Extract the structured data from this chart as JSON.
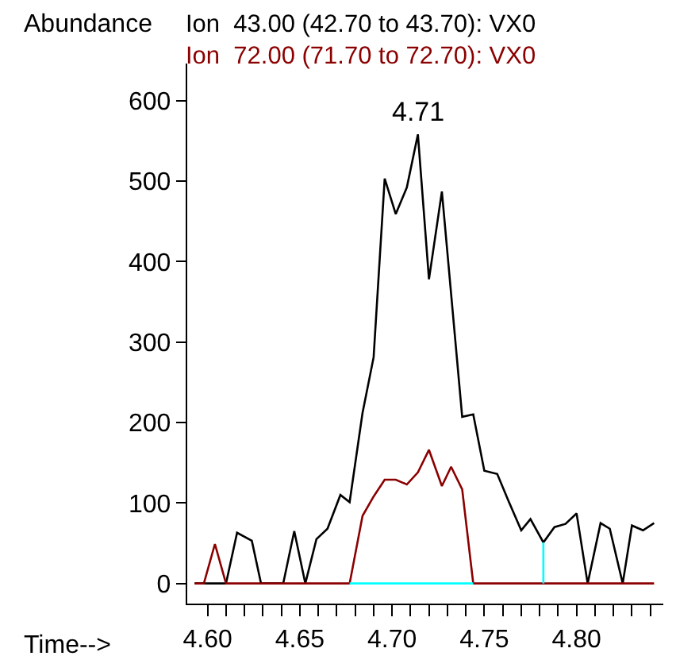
{
  "chart_data": {
    "type": "line",
    "xlabel": "Time-->",
    "ylabel": "Abundance",
    "xlim": [
      4.589,
      4.847
    ],
    "ylim": [
      -25,
      646
    ],
    "xticks": [
      {
        "value": 4.6,
        "label": "4.60"
      },
      {
        "value": 4.61,
        "label": null
      },
      {
        "value": 4.62,
        "label": null
      },
      {
        "value": 4.63,
        "label": null
      },
      {
        "value": 4.64,
        "label": null
      },
      {
        "value": 4.65,
        "label": "4.65"
      },
      {
        "value": 4.66,
        "label": null
      },
      {
        "value": 4.67,
        "label": null
      },
      {
        "value": 4.68,
        "label": null
      },
      {
        "value": 4.69,
        "label": null
      },
      {
        "value": 4.7,
        "label": "4.70"
      },
      {
        "value": 4.71,
        "label": null
      },
      {
        "value": 4.72,
        "label": null
      },
      {
        "value": 4.73,
        "label": null
      },
      {
        "value": 4.74,
        "label": null
      },
      {
        "value": 4.75,
        "label": "4.75"
      },
      {
        "value": 4.76,
        "label": null
      },
      {
        "value": 4.77,
        "label": null
      },
      {
        "value": 4.78,
        "label": null
      },
      {
        "value": 4.79,
        "label": null
      },
      {
        "value": 4.8,
        "label": "4.80"
      },
      {
        "value": 4.81,
        "label": null
      },
      {
        "value": 4.82,
        "label": null
      },
      {
        "value": 4.83,
        "label": null
      },
      {
        "value": 4.84,
        "label": null
      }
    ],
    "yticks": [
      0,
      100,
      200,
      300,
      400,
      500,
      600
    ],
    "grid": false,
    "legend": "top",
    "marker": "none",
    "annotations": [
      {
        "text": "4.71",
        "x": 4.714,
        "y": 558
      }
    ],
    "series": [
      {
        "name": "Ion  43.00 (42.70 to 43.70): VX0",
        "color": "#000000",
        "x": [
          4.593,
          4.61,
          4.616,
          4.624,
          4.629,
          4.641,
          4.647,
          4.653,
          4.659,
          4.665,
          4.672,
          4.677,
          4.684,
          4.69,
          4.696,
          4.702,
          4.708,
          4.714,
          4.72,
          4.727,
          4.738,
          4.744,
          4.75,
          4.757,
          4.763,
          4.77,
          4.775,
          4.782,
          4.788,
          4.794,
          4.8,
          4.806,
          4.813,
          4.818,
          4.825,
          4.83,
          4.836,
          4.842
        ],
        "values": [
          0,
          0,
          63,
          53,
          0,
          0,
          65,
          0,
          55,
          68,
          110,
          101,
          212,
          281,
          503,
          459,
          492,
          558,
          378,
          487,
          207,
          210,
          140,
          136,
          103,
          66,
          80,
          51,
          70,
          74,
          87,
          0,
          75,
          68,
          0,
          72,
          66,
          75
        ]
      },
      {
        "name": "Ion  72.00 (71.70 to 72.70): VX0",
        "color": "#8b0000",
        "x": [
          4.593,
          4.598,
          4.604,
          4.61,
          4.677,
          4.684,
          4.69,
          4.696,
          4.702,
          4.708,
          4.714,
          4.72,
          4.727,
          4.732,
          4.738,
          4.744,
          4.842
        ],
        "values": [
          0,
          0,
          49,
          0,
          0,
          84,
          108,
          129,
          129,
          123,
          138,
          166,
          121,
          145,
          117,
          0,
          0
        ]
      },
      {
        "color": "#00ffff",
        "x": [
          4.677,
          4.744
        ],
        "values": [
          0,
          0
        ]
      },
      {
        "color": "#00ffff",
        "x": [
          4.782,
          4.782
        ],
        "values": [
          0,
          51
        ]
      }
    ]
  }
}
